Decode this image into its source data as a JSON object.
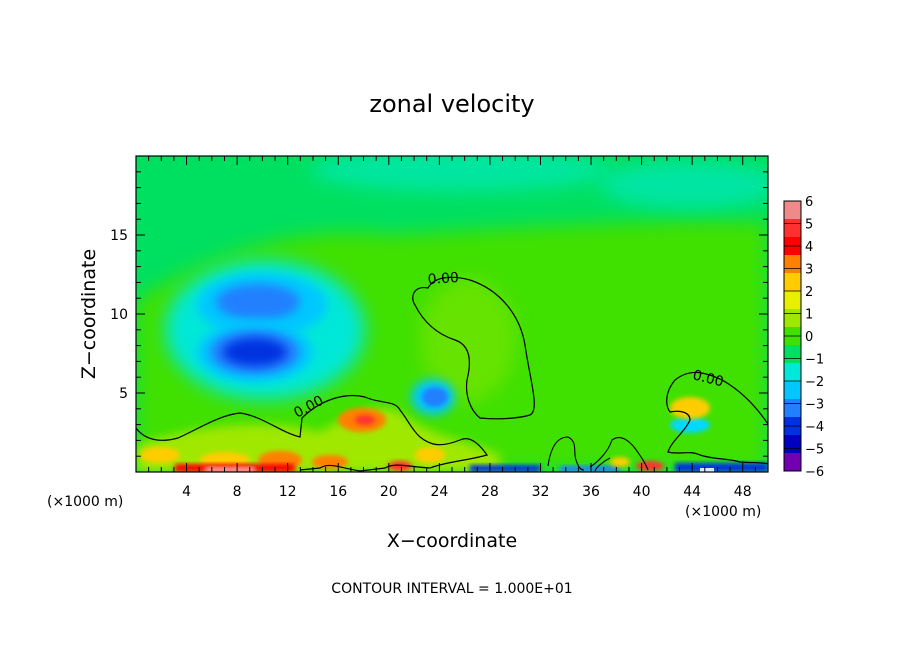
{
  "chart_data": {
    "type": "heatmap",
    "title": "zonal velocity",
    "xlabel": "X−coordinate",
    "ylabel": "Z−coordinate",
    "x_unit_left": "(×1000 m)",
    "x_unit_right": "(×1000 m)",
    "xlim": [
      0,
      50
    ],
    "ylim": [
      0,
      20
    ],
    "xticks": [
      4,
      8,
      12,
      16,
      20,
      24,
      28,
      32,
      36,
      40,
      44,
      48
    ],
    "yticks": [
      5,
      10,
      15
    ],
    "colorbar": {
      "labels": [
        "6",
        "5",
        "4",
        "3",
        "2",
        "1",
        "0",
        "−1",
        "−2",
        "−3",
        "−4",
        "−5",
        "−6"
      ],
      "colors": [
        "#f08a8a",
        "#ff3030",
        "#ff0000",
        "#ff8000",
        "#ffcc00",
        "#e8f000",
        "#a0e800",
        "#40e000",
        "#00e060",
        "#00e8d8",
        "#00c8ff",
        "#2080ff",
        "#0030e0",
        "#0000c0",
        "#7000b0"
      ]
    },
    "contour_labels": [
      {
        "text": "0.00",
        "x": 25.3,
        "z": 12.4
      },
      {
        "text": "0.00",
        "x": 14.3,
        "z": 4.1
      },
      {
        "text": "0.00",
        "x": 45.3,
        "z": 6.1
      }
    ],
    "features": [
      {
        "name": "negative-core-upper",
        "x": 9.5,
        "z": 10.8,
        "value": -3
      },
      {
        "name": "negative-core-lower",
        "x": 9.5,
        "z": 7.5,
        "value": -5
      },
      {
        "name": "negative-core-mid",
        "x": 23.5,
        "z": 4.8,
        "value": -3
      },
      {
        "name": "positive-core-near-surface",
        "x": 18.5,
        "z": 3.2,
        "value": 3
      }
    ],
    "footer": "CONTOUR INTERVAL = 1.000E+01"
  }
}
